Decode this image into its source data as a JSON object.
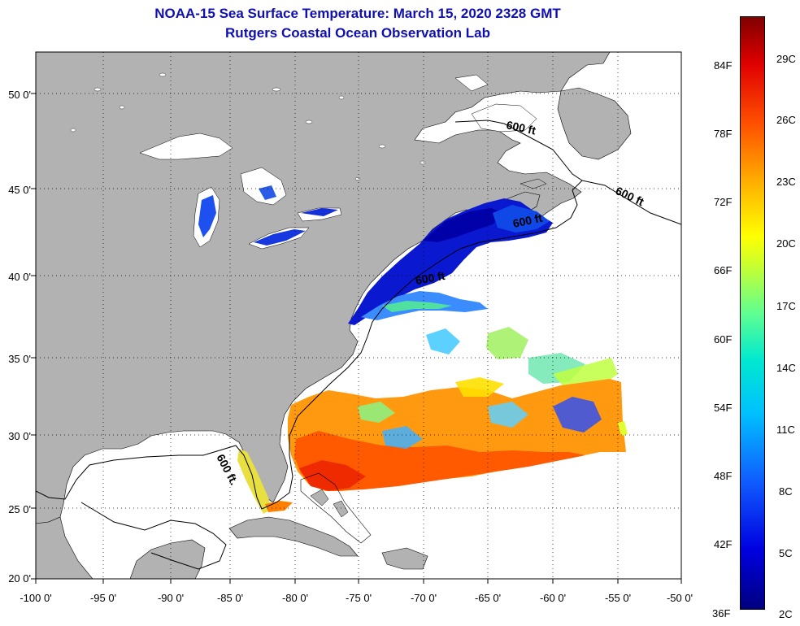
{
  "title": {
    "line1": "NOAA-15 Sea Surface Temperature:  March 15, 2020 2328 GMT",
    "line2": "Rutgers Coastal Ocean Observation Lab"
  },
  "map": {
    "lon_ticks": [
      "-100 0'",
      "-95 0'",
      "-90 0'",
      "-85 0'",
      "-80 0'",
      "-75 0'",
      "-70 0'",
      "-65 0'",
      "-60 0'",
      "-55 0'",
      "-50 0'"
    ],
    "lat_ticks": [
      "50 0'",
      "45 0'",
      "40 0'",
      "35 0'",
      "30 0'",
      "25 0'",
      "20 0'"
    ],
    "depth_labels": [
      "600 ft",
      "600 ft",
      "600 ft",
      "600 ft",
      "600 ft."
    ],
    "colors": {
      "land": "#b2b2b2",
      "ocean": "#ffffff",
      "contour": "#000000"
    }
  },
  "colorbar": {
    "fahrenheit": [
      "84F",
      "78F",
      "72F",
      "66F",
      "60F",
      "54F",
      "48F",
      "42F",
      "36F"
    ],
    "celsius": [
      "29C",
      "26C",
      "23C",
      "20C",
      "17C",
      "14C",
      "11C",
      "8C",
      "5C",
      "2C"
    ]
  }
}
